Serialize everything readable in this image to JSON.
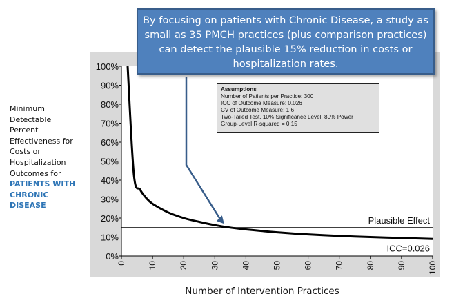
{
  "y_axis_label_lines": [
    "Minimum",
    "Detectable",
    "Percent",
    "Effectiveness for",
    "Costs or",
    "Hospitalization",
    "Outcomes for"
  ],
  "y_axis_label_highlight_lines": [
    "PATIENTS WITH",
    "CHRONIC",
    "DISEASE"
  ],
  "highlight_color": "#2e75b6",
  "callout": {
    "lines": [
      "By focusing on patients with Chronic Disease, a study as",
      "small as 35 PMCH practices (plus comparison practices)",
      "can detect the plausible 15% reduction in costs or",
      "hospitalization rates."
    ],
    "color": "#4f81bd"
  },
  "assumptions": {
    "title": "Assumptions",
    "lines": [
      "Number of Patients per Practice: 300",
      "ICC of Outcome Measure: 0.026",
      "CV of Outcome Measure: 1.6",
      "Two-Tailed Test, 10% Significance Level, 80% Power",
      "Group-Level R-squared = 0.15"
    ]
  },
  "chart_data": {
    "type": "line",
    "title": "",
    "xlabel": "Number of Intervention Practices",
    "ylabel": "Minimum Detectable Percent Effectiveness for Costs or Hospitalization Outcomes for PATIENTS WITH CHRONIC DISEASE",
    "xlim": [
      0,
      100
    ],
    "ylim": [
      0,
      100
    ],
    "x_ticks": [
      "0",
      "10",
      "20",
      "30",
      "40",
      "50",
      "60",
      "70",
      "80",
      "90",
      "100"
    ],
    "y_ticks": [
      "0%",
      "10%",
      "20%",
      "30%",
      "40%",
      "50%",
      "60%",
      "70%",
      "80%",
      "90%",
      "100%"
    ],
    "plot_background": "#d9d9d9",
    "series": [
      {
        "name": "ICC=0.026",
        "x": [
          2,
          4,
          6,
          8,
          10,
          15,
          20,
          25,
          30,
          35,
          40,
          50,
          60,
          70,
          80,
          90,
          100
        ],
        "y": [
          100,
          43,
          35,
          30.5,
          27.5,
          23,
          20,
          18,
          16.3,
          15,
          14,
          12.5,
          11.4,
          10.6,
          10,
          9.5,
          9
        ],
        "color": "#000000"
      }
    ],
    "reference_line": {
      "label": "Plausible Effect",
      "y": 15
    },
    "annotation_arrow": {
      "from": [
        20,
        48
      ],
      "to": [
        33,
        17
      ]
    }
  }
}
